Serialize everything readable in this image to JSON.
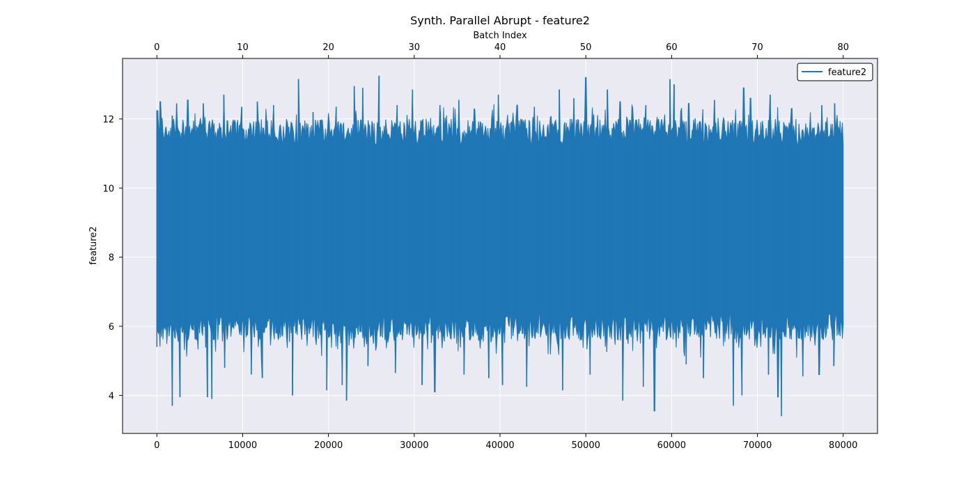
{
  "chart_data": {
    "type": "line",
    "title": "Synth. Parallel Abrupt - feature2",
    "xlabel": "",
    "ylabel": "feature2",
    "top_xlabel": "Batch Index",
    "xlim": [
      -4000,
      84000
    ],
    "ylim": [
      2.9,
      13.75
    ],
    "top_xlim": [
      -4000,
      84000
    ],
    "x_ticks": [
      0,
      10000,
      20000,
      30000,
      40000,
      50000,
      60000,
      70000,
      80000
    ],
    "x_tick_labels": [
      "0",
      "10000",
      "20000",
      "30000",
      "40000",
      "50000",
      "60000",
      "70000",
      "80000"
    ],
    "y_ticks": [
      4,
      6,
      8,
      10,
      12
    ],
    "y_tick_labels": [
      "4",
      "6",
      "8",
      "10",
      "12"
    ],
    "top_x_ticks": [
      0,
      10000,
      20000,
      30000,
      40000,
      50000,
      60000,
      70000,
      80000
    ],
    "top_x_tick_labels": [
      "0",
      "10",
      "20",
      "30",
      "40",
      "50",
      "60",
      "70",
      "80"
    ],
    "grid": true,
    "legend": {
      "placement": "top-right",
      "entries": [
        "feature2"
      ]
    },
    "series": [
      {
        "name": "feature2",
        "color": "#1f77b4",
        "x_range": [
          0,
          79999
        ],
        "band": {
          "low_typical": 5.8,
          "high_typical": 11.8,
          "centre": 8.8
        },
        "spikes_high": [
          [
            100,
            12.25
          ],
          [
            400,
            12.5
          ],
          [
            1800,
            12.1
          ],
          [
            2300,
            12.45
          ],
          [
            3600,
            12.55
          ],
          [
            5400,
            12.45
          ],
          [
            7800,
            12.7
          ],
          [
            9900,
            12.35
          ],
          [
            11700,
            12.5
          ],
          [
            13600,
            12.4
          ],
          [
            16500,
            13.15
          ],
          [
            18200,
            12.2
          ],
          [
            20900,
            12.35
          ],
          [
            23000,
            12.95
          ],
          [
            24000,
            12.9
          ],
          [
            25900,
            13.25
          ],
          [
            28000,
            12.4
          ],
          [
            29800,
            12.85
          ],
          [
            33000,
            12.4
          ],
          [
            35200,
            12.55
          ],
          [
            37000,
            12.3
          ],
          [
            39800,
            12.7
          ],
          [
            42000,
            12.4
          ],
          [
            44000,
            12.35
          ],
          [
            46900,
            12.85
          ],
          [
            48600,
            12.6
          ],
          [
            50000,
            13.2
          ],
          [
            52500,
            12.85
          ],
          [
            54000,
            12.5
          ],
          [
            57000,
            12.4
          ],
          [
            59800,
            13.15
          ],
          [
            60300,
            13.0
          ],
          [
            62000,
            12.45
          ],
          [
            65000,
            12.55
          ],
          [
            68400,
            12.9
          ],
          [
            69200,
            12.6
          ],
          [
            71500,
            12.7
          ],
          [
            74000,
            12.3
          ],
          [
            77500,
            12.4
          ],
          [
            79000,
            12.45
          ]
        ],
        "spikes_low": [
          [
            1800,
            3.7
          ],
          [
            2700,
            3.95
          ],
          [
            5900,
            3.95
          ],
          [
            6400,
            3.9
          ],
          [
            7900,
            4.8
          ],
          [
            11000,
            4.6
          ],
          [
            12300,
            4.5
          ],
          [
            15800,
            4.0
          ],
          [
            19800,
            4.15
          ],
          [
            21600,
            4.3
          ],
          [
            22100,
            3.85
          ],
          [
            24600,
            4.85
          ],
          [
            27800,
            4.65
          ],
          [
            30900,
            4.3
          ],
          [
            32400,
            4.1
          ],
          [
            35800,
            4.6
          ],
          [
            38700,
            4.5
          ],
          [
            40300,
            4.3
          ],
          [
            43100,
            4.25
          ],
          [
            47300,
            4.15
          ],
          [
            50500,
            4.6
          ],
          [
            54300,
            3.85
          ],
          [
            56700,
            4.25
          ],
          [
            58000,
            3.55
          ],
          [
            61700,
            4.9
          ],
          [
            63700,
            4.5
          ],
          [
            67200,
            3.7
          ],
          [
            68200,
            4.0
          ],
          [
            71300,
            4.6
          ],
          [
            72400,
            3.95
          ],
          [
            72800,
            3.4
          ],
          [
            75300,
            4.55
          ],
          [
            77200,
            4.6
          ],
          [
            78900,
            4.85
          ]
        ]
      }
    ]
  }
}
